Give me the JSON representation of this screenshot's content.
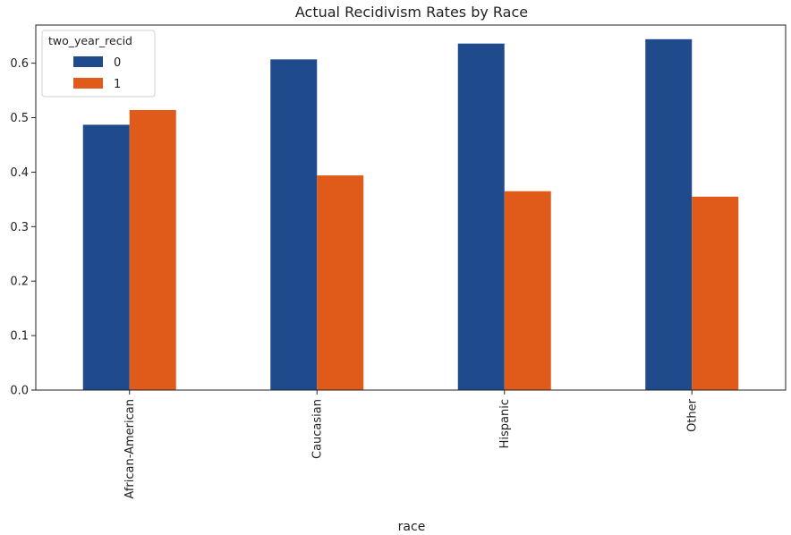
{
  "chart_data": {
    "type": "bar",
    "title": "Actual Recidivism Rates by Race",
    "xlabel": "race",
    "ylabel": "",
    "categories": [
      "African-American",
      "Caucasian",
      "Hispanic",
      "Other"
    ],
    "series": [
      {
        "name": "0",
        "values": [
          0.487,
          0.607,
          0.636,
          0.644
        ],
        "color": "#1f4a8c"
      },
      {
        "name": "1",
        "values": [
          0.514,
          0.394,
          0.365,
          0.355
        ],
        "color": "#e05a1a"
      }
    ],
    "ylim": [
      0,
      0.67
    ],
    "yticks": [
      "0.0",
      "0.1",
      "0.2",
      "0.3",
      "0.4",
      "0.5",
      "0.6"
    ],
    "legend": {
      "title": "two_year_recid",
      "placement": "top-left"
    },
    "grid": false
  }
}
